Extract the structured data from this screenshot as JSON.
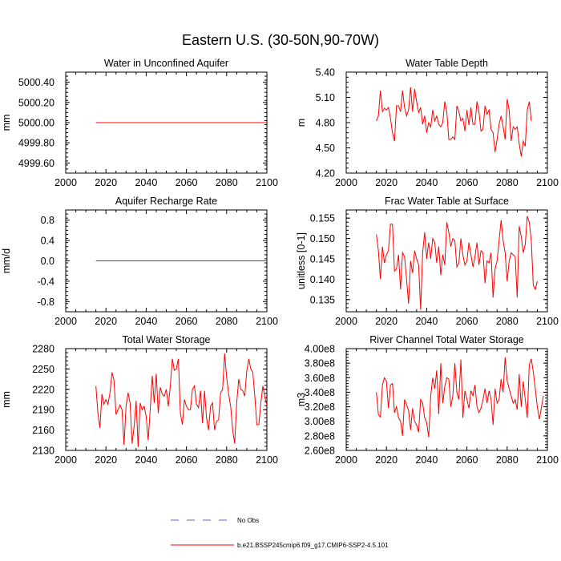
{
  "page_title": "Eastern U.S. (30-50N,90-70W)",
  "legend": {
    "items": [
      {
        "label": "No Obs",
        "color": "#6a5acd",
        "style": "dashed"
      },
      {
        "label": "b.e21.BSSP245cmip6.f09_g17.CMIP6-SSP2-4.5.101",
        "color": "#ff0000",
        "style": "solid"
      }
    ]
  },
  "chart_data": [
    {
      "id": "water-in-unconfined-aquifer",
      "type": "line",
      "title": "Water in Unconfined Aquifer",
      "ylabel": "mm",
      "xlabel": "",
      "xlim": [
        2000,
        2100
      ],
      "ylim": [
        4999.5,
        5000.5
      ],
      "xticks": [
        2000,
        2020,
        2040,
        2060,
        2080,
        2100
      ],
      "xtick_labels": [
        "2000",
        "2020",
        "2040",
        "2060",
        "2080",
        "2100"
      ],
      "yticks": [
        4999.6,
        4999.8,
        5000.0,
        5000.2,
        5000.4
      ],
      "ytick_labels": [
        "4999.60",
        "4999.80",
        "5000.00",
        "5000.20",
        "5000.40"
      ],
      "series": [
        {
          "name": "b.e21.BSSP245cmip6.f09_g17.CMIP6-SSP2-4.5.101",
          "color": "#ff0000",
          "x_start": 2015,
          "x_step": 1,
          "values": [
            5000,
            5000,
            5000,
            5000,
            5000,
            5000,
            5000,
            5000,
            5000,
            5000,
            5000,
            5000,
            5000,
            5000,
            5000,
            5000,
            5000,
            5000,
            5000,
            5000,
            5000,
            5000,
            5000,
            5000,
            5000,
            5000,
            5000,
            5000,
            5000,
            5000,
            5000,
            5000,
            5000,
            5000,
            5000,
            5000,
            5000,
            5000,
            5000,
            5000,
            5000,
            5000,
            5000,
            5000,
            5000,
            5000,
            5000,
            5000,
            5000,
            5000,
            5000,
            5000,
            5000,
            5000,
            5000,
            5000,
            5000,
            5000,
            5000,
            5000,
            5000,
            5000,
            5000,
            5000,
            5000,
            5000,
            5000,
            5000,
            5000,
            5000,
            5000,
            5000,
            5000,
            5000,
            5000,
            5000,
            5000,
            5000,
            5000,
            5000,
            5000,
            5000,
            5000,
            5000,
            5000,
            5000
          ]
        }
      ]
    },
    {
      "id": "water-table-depth",
      "type": "line",
      "title": "Water Table Depth",
      "ylabel": "m",
      "xlabel": "",
      "xlim": [
        2000,
        2100
      ],
      "ylim": [
        4.2,
        5.4
      ],
      "xticks": [
        2000,
        2020,
        2040,
        2060,
        2080,
        2100
      ],
      "xtick_labels": [
        "2000",
        "2020",
        "2040",
        "2060",
        "2080",
        "2100"
      ],
      "yticks": [
        4.2,
        4.5,
        4.8,
        5.1,
        5.4
      ],
      "ytick_labels": [
        "4.20",
        "4.50",
        "4.80",
        "5.10",
        "5.40"
      ],
      "series": [
        {
          "name": "b.e21.BSSP245cmip6.f09_g17.CMIP6-SSP2-4.5.101",
          "color": "#ff0000",
          "x_start": 2015,
          "x_step": 1,
          "values": [
            4.82,
            4.88,
            5.18,
            4.93,
            4.97,
            4.95,
            4.98,
            4.85,
            4.68,
            4.58,
            5.0,
            5.0,
            4.93,
            5.18,
            4.98,
            4.88,
            4.95,
            5.22,
            4.93,
            5.2,
            5.05,
            4.92,
            4.98,
            4.78,
            4.88,
            4.68,
            4.8,
            4.75,
            4.95,
            4.82,
            4.88,
            4.78,
            4.75,
            4.8,
            5.05,
            4.93,
            4.6,
            4.6,
            4.63,
            4.6,
            5.0,
            4.93,
            4.82,
            4.85,
            4.7,
            4.95,
            4.77,
            4.98,
            4.78,
            4.78,
            5.05,
            4.93,
            4.7,
            4.72,
            5.0,
            4.9,
            4.95,
            4.72,
            4.68,
            4.45,
            4.6,
            4.78,
            4.88,
            4.75,
            4.6,
            5.08,
            4.95,
            4.58,
            4.75,
            4.72,
            4.75,
            4.55,
            4.4,
            4.58,
            4.52,
            4.95,
            5.05,
            4.82
          ]
        }
      ]
    },
    {
      "id": "aquifer-recharge-rate",
      "type": "line",
      "title": "Aquifer Recharge Rate",
      "ylabel": "mm/d",
      "xlabel": "",
      "xlim": [
        2000,
        2100
      ],
      "ylim": [
        -1.0,
        1.0
      ],
      "xticks": [
        2000,
        2020,
        2040,
        2060,
        2080,
        2100
      ],
      "xtick_labels": [
        "2000",
        "2020",
        "2040",
        "2060",
        "2080",
        "2100"
      ],
      "yticks": [
        -0.8,
        -0.4,
        0.0,
        0.4,
        0.8
      ],
      "ytick_labels": [
        "-0.8",
        "-0.4",
        "0.0",
        "0.4",
        "0.8"
      ],
      "series": [
        {
          "name": "b.e21.BSSP245cmip6.f09_g17.CMIP6-SSP2-4.5.101",
          "color": "#ff0000",
          "x_start": 2015,
          "x_step": 1,
          "values": [
            0,
            0,
            0,
            0,
            0,
            0,
            0,
            0,
            0,
            0,
            0,
            0,
            0,
            0,
            0,
            0,
            0,
            0,
            0,
            0,
            0,
            0,
            0,
            0,
            0,
            0,
            0,
            0,
            0,
            0,
            0,
            0,
            0,
            0,
            0,
            0,
            0,
            0,
            0,
            0,
            0,
            0,
            0,
            0,
            0,
            0,
            0,
            0,
            0,
            0,
            0,
            0,
            0,
            0,
            0,
            0,
            0,
            0,
            0,
            0,
            0,
            0,
            0,
            0,
            0,
            0,
            0,
            0,
            0,
            0,
            0,
            0,
            0,
            0,
            0,
            0,
            0,
            0,
            0,
            0,
            0,
            0,
            0,
            0,
            0,
            0
          ]
        }
      ]
    },
    {
      "id": "frac-water-table-at-surface",
      "type": "line",
      "title": "Frac Water Table at Surface",
      "ylabel": "unitless [0-1]",
      "xlabel": "",
      "xlim": [
        2000,
        2100
      ],
      "ylim": [
        0.132,
        0.157
      ],
      "xticks": [
        2000,
        2020,
        2040,
        2060,
        2080,
        2100
      ],
      "xtick_labels": [
        "2000",
        "2020",
        "2040",
        "2060",
        "2080",
        "2100"
      ],
      "yticks": [
        0.135,
        0.14,
        0.145,
        0.15,
        0.155
      ],
      "ytick_labels": [
        "0.135",
        "0.140",
        "0.145",
        "0.150",
        "0.155"
      ],
      "series": [
        {
          "name": "b.e21.BSSP245cmip6.f09_g17.CMIP6-SSP2-4.5.101",
          "color": "#ff0000",
          "x_start": 2015,
          "x_step": 1,
          "values": [
            0.151,
            0.147,
            0.14,
            0.148,
            0.144,
            0.146,
            0.147,
            0.1535,
            0.1535,
            0.142,
            0.1425,
            0.146,
            0.1375,
            0.1465,
            0.1455,
            0.14,
            0.134,
            0.1445,
            0.1415,
            0.147,
            0.145,
            0.1435,
            0.1325,
            0.1465,
            0.1515,
            0.145,
            0.149,
            0.145,
            0.15,
            0.149,
            0.144,
            0.148,
            0.141,
            0.146,
            0.1435,
            0.154,
            0.1515,
            0.148,
            0.15,
            0.1495,
            0.143,
            0.144,
            0.15,
            0.146,
            0.1435,
            0.1445,
            0.149,
            0.146,
            0.143,
            0.1455,
            0.149,
            0.1435,
            0.147,
            0.1465,
            0.139,
            0.1445,
            0.144,
            0.1465,
            0.1355,
            0.1425,
            0.1445,
            0.1495,
            0.1545,
            0.1495,
            0.1465,
            0.1395,
            0.1445,
            0.1465,
            0.146,
            0.1455,
            0.1355,
            0.153,
            0.1505,
            0.1465,
            0.1485,
            0.1555,
            0.154,
            0.1495,
            0.1385,
            0.1375,
            0.1395
          ]
        }
      ]
    },
    {
      "id": "total-water-storage",
      "type": "line",
      "title": "Total Water Storage",
      "ylabel": "mm",
      "xlabel": "",
      "xlim": [
        2000,
        2100
      ],
      "ylim": [
        2130,
        2280
      ],
      "xticks": [
        2000,
        2020,
        2040,
        2060,
        2080,
        2100
      ],
      "xtick_labels": [
        "2000",
        "2020",
        "2040",
        "2060",
        "2080",
        "2100"
      ],
      "yticks": [
        2130,
        2160,
        2190,
        2220,
        2250,
        2280
      ],
      "ytick_labels": [
        "2130",
        "2160",
        "2190",
        "2220",
        "2250",
        "2280"
      ],
      "series": [
        {
          "name": "b.e21.BSSP245cmip6.f09_g17.CMIP6-SSP2-4.5.101",
          "color": "#ff0000",
          "x_start": 2015,
          "x_step": 1,
          "values": [
            2225,
            2185,
            2163,
            2213,
            2198,
            2205,
            2198,
            2215,
            2245,
            2233,
            2183,
            2190,
            2197,
            2190,
            2138,
            2195,
            2215,
            2200,
            2140,
            2165,
            2203,
            2135,
            2200,
            2190,
            2195,
            2180,
            2145,
            2190,
            2240,
            2200,
            2243,
            2185,
            2223,
            2213,
            2210,
            2220,
            2195,
            2225,
            2265,
            2248,
            2250,
            2265,
            2185,
            2168,
            2205,
            2195,
            2190,
            2190,
            2220,
            2225,
            2198,
            2193,
            2218,
            2170,
            2218,
            2178,
            2160,
            2195,
            2200,
            2160,
            2173,
            2175,
            2215,
            2220,
            2273,
            2238,
            2213,
            2195,
            2160,
            2140,
            2200,
            2235,
            2220,
            2218,
            2210,
            2247,
            2265,
            2250,
            2245,
            2210,
            2168,
            2168,
            2200,
            2225,
            2208,
            2197
          ]
        }
      ]
    },
    {
      "id": "river-channel-total-water-storage",
      "type": "line",
      "title": "River Channel Total Water Storage",
      "ylabel": "m3",
      "xlabel": "",
      "xlim": [
        2000,
        2100
      ],
      "ylim": [
        260000000,
        400000000
      ],
      "xticks": [
        2000,
        2020,
        2040,
        2060,
        2080,
        2100
      ],
      "xtick_labels": [
        "2000",
        "2020",
        "2040",
        "2060",
        "2080",
        "2100"
      ],
      "yticks": [
        260000000,
        280000000,
        300000000,
        320000000,
        340000000,
        360000000,
        380000000,
        400000000
      ],
      "ytick_labels": [
        "2.60e8",
        "2.80e8",
        "3.00e8",
        "3.20e8",
        "3.40e8",
        "3.60e8",
        "3.80e8",
        "4.00e8"
      ],
      "series": [
        {
          "name": "b.e21.BSSP245cmip6.f09_g17.CMIP6-SSP2-4.5.101",
          "color": "#ff0000",
          "x_start": 2015,
          "x_step": 1,
          "values": [
            340000000,
            309000000,
            306000000,
            350000000,
            360000000,
            355000000,
            318000000,
            350000000,
            352000000,
            312000000,
            320000000,
            305000000,
            300000000,
            280000000,
            330000000,
            323000000,
            315000000,
            288000000,
            318000000,
            300000000,
            295000000,
            285000000,
            330000000,
            325000000,
            305000000,
            298000000,
            278000000,
            335000000,
            360000000,
            345000000,
            370000000,
            310000000,
            380000000,
            325000000,
            348000000,
            360000000,
            358000000,
            320000000,
            335000000,
            380000000,
            340000000,
            330000000,
            385000000,
            305000000,
            342000000,
            330000000,
            318000000,
            342000000,
            335000000,
            350000000,
            320000000,
            312000000,
            318000000,
            330000000,
            345000000,
            325000000,
            342000000,
            330000000,
            295000000,
            345000000,
            325000000,
            330000000,
            358000000,
            340000000,
            388000000,
            356000000,
            345000000,
            335000000,
            325000000,
            330000000,
            316000000,
            365000000,
            320000000,
            355000000,
            330000000,
            305000000,
            378000000,
            386000000,
            368000000,
            345000000,
            320000000,
            303000000,
            318000000,
            335000000
          ]
        }
      ]
    }
  ]
}
